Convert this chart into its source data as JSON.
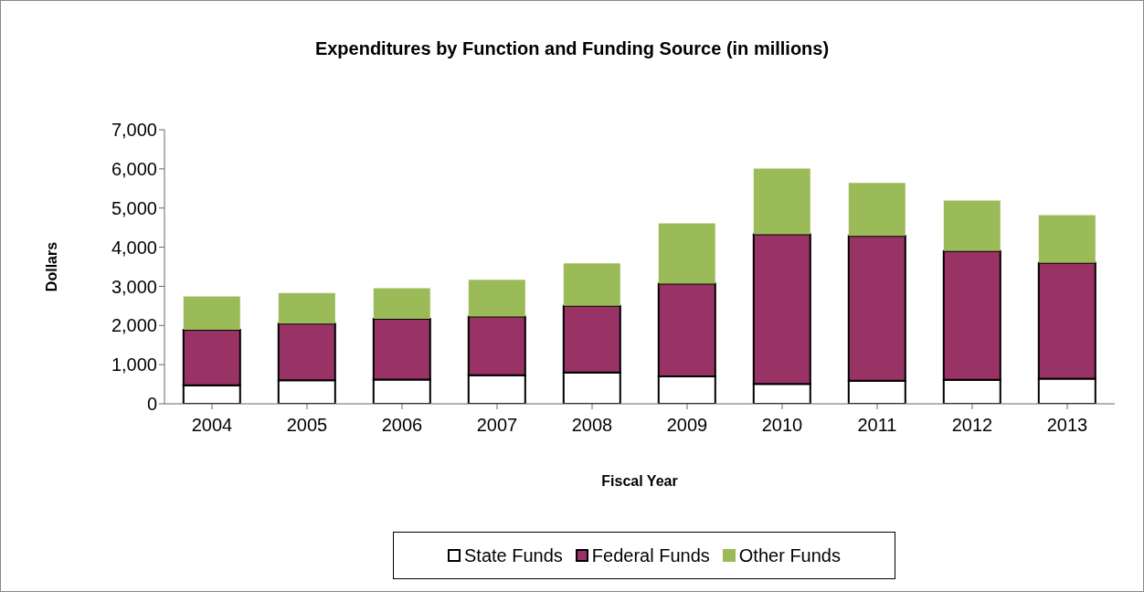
{
  "chart_data": {
    "type": "bar",
    "title": "Expenditures by Function and Funding Source (in millions)",
    "xlabel": "Fiscal Year",
    "ylabel": "Dollars",
    "categories": [
      "2004",
      "2005",
      "2006",
      "2007",
      "2008",
      "2009",
      "2010",
      "2011",
      "2012",
      "2013"
    ],
    "stacked": true,
    "series": [
      {
        "name": "State Funds",
        "color": "#ffffff",
        "values": [
          470,
          600,
          620,
          730,
          800,
          700,
          510,
          590,
          610,
          640
        ]
      },
      {
        "name": "Federal Funds",
        "color": "#993366",
        "values": [
          1420,
          1450,
          1550,
          1500,
          1700,
          2370,
          3820,
          3700,
          3290,
          2960
        ]
      },
      {
        "name": "Other Funds",
        "color": "#9bbb59",
        "values": [
          850,
          780,
          780,
          940,
          1090,
          1540,
          1680,
          1350,
          1290,
          1220
        ]
      }
    ],
    "ylim": [
      0,
      7000
    ],
    "yticks": [
      0,
      {
        "value": 1000,
        "label": "1,000"
      },
      {
        "value": 2000,
        "label": "2,000"
      },
      {
        "value": 3000,
        "label": "3,000"
      },
      {
        "value": 4000,
        "label": "4,000"
      },
      {
        "value": 5000,
        "label": "5,000"
      },
      {
        "value": 6000,
        "label": "6,000"
      },
      {
        "value": 7000,
        "label": "7,000"
      }
    ],
    "grid": false,
    "legend": "bottom"
  }
}
